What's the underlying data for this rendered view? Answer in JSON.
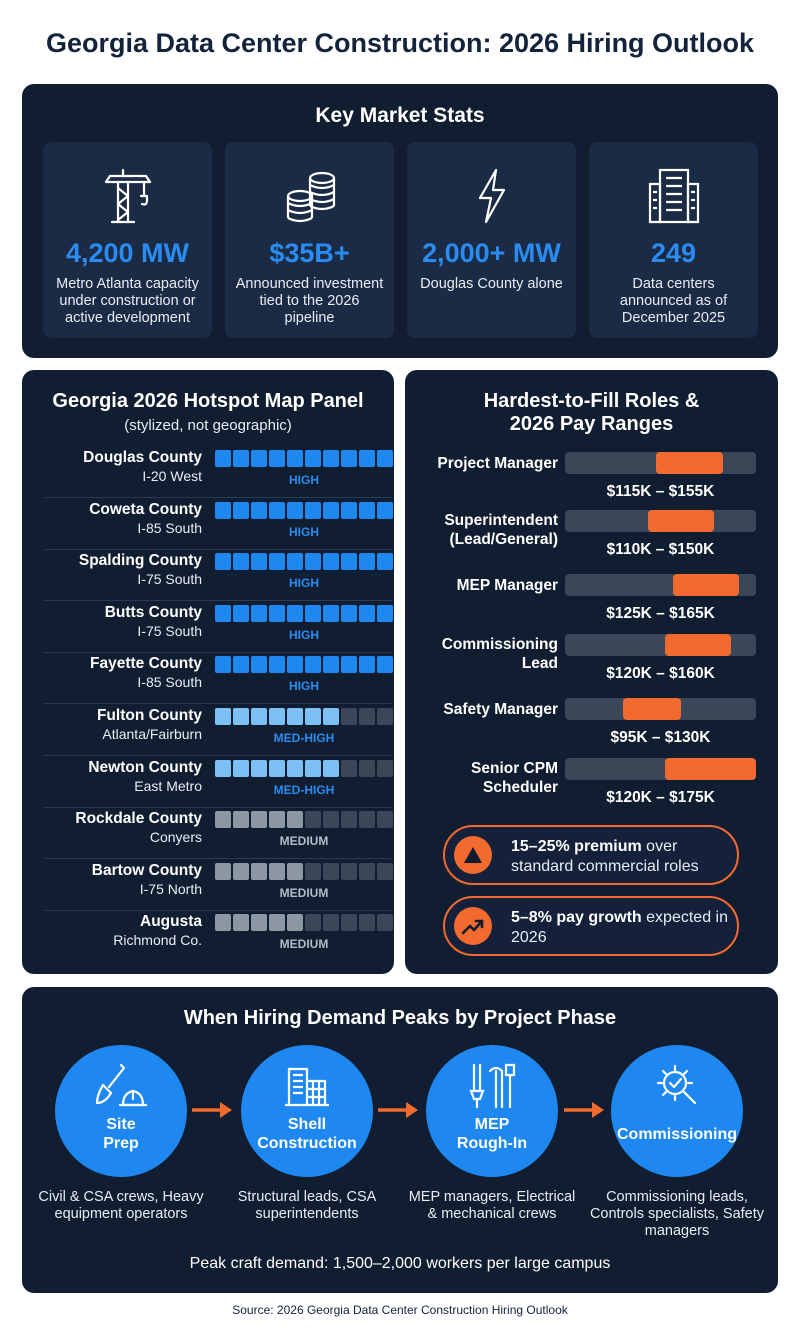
{
  "title": "Georgia Data Center Construction: 2026 Hiring Outlook",
  "stats": {
    "heading": "Key Market Stats",
    "cards": [
      {
        "icon": "crane-icon",
        "value": "4,200 MW",
        "desc": "Metro Atlanta capacity under construction or active development"
      },
      {
        "icon": "coins-icon",
        "value": "$35B+",
        "desc": "Announced investment tied to the 2026 pipeline"
      },
      {
        "icon": "lightning-icon",
        "value": "2,000+ MW",
        "desc": "Douglas County alone"
      },
      {
        "icon": "building-icon",
        "value": "249",
        "desc": "Data centers announced as of December 2025"
      }
    ]
  },
  "map": {
    "heading": "Georgia 2026 Hotspot Map Panel",
    "subheading": "(stylized, not geographic)",
    "counties": [
      {
        "name": "Douglas County",
        "sub": "I-20 West",
        "level": "HIGH",
        "filled": 10,
        "tone": "high"
      },
      {
        "name": "Coweta County",
        "sub": "I-85 South",
        "level": "HIGH",
        "filled": 10,
        "tone": "high"
      },
      {
        "name": "Spalding County",
        "sub": "I-75 South",
        "level": "HIGH",
        "filled": 10,
        "tone": "high"
      },
      {
        "name": "Butts County",
        "sub": "I-75 South",
        "level": "HIGH",
        "filled": 10,
        "tone": "high"
      },
      {
        "name": "Fayette County",
        "sub": "I-85 South",
        "level": "HIGH",
        "filled": 10,
        "tone": "high"
      },
      {
        "name": "Fulton County",
        "sub": "Atlanta/Fairburn",
        "level": "MED-HIGH",
        "filled": 7,
        "tone": "medhigh"
      },
      {
        "name": "Newton County",
        "sub": "East Metro",
        "level": "MED-HIGH",
        "filled": 7,
        "tone": "medhigh"
      },
      {
        "name": "Rockdale County",
        "sub": "Conyers",
        "level": "MEDIUM",
        "filled": 5,
        "tone": "medium"
      },
      {
        "name": "Bartow County",
        "sub": "I-75 North",
        "level": "MEDIUM",
        "filled": 5,
        "tone": "medium"
      },
      {
        "name": "Augusta",
        "sub": "Richmond Co.",
        "level": "MEDIUM",
        "filled": 5,
        "tone": "medium"
      }
    ],
    "colors": {
      "high": "#1e88f0",
      "medhigh": "#7cc0f5",
      "medium": "#8d96a3",
      "empty": "#3b4658",
      "level_high": "#2a8cf0",
      "level_medhigh": "#2a8cf0",
      "level_medium": "#b3bcc8"
    }
  },
  "roles": {
    "heading_line1": "Hardest-to-Fill Roles &",
    "heading_line2": "2026 Pay Ranges",
    "scale_min": 60,
    "scale_max": 175,
    "items": [
      {
        "name": "Project Manager",
        "min": 115,
        "max": 155,
        "range": "$115K – $155K"
      },
      {
        "name": "Superintendent (Lead/General)",
        "min": 110,
        "max": 150,
        "range": "$110K – $150K"
      },
      {
        "name": "MEP Manager",
        "min": 125,
        "max": 165,
        "range": "$125K – $165K"
      },
      {
        "name": "Commissioning Lead",
        "min": 120,
        "max": 160,
        "range": "$120K – $160K"
      },
      {
        "name": "Safety Manager",
        "min": 95,
        "max": 130,
        "range": "$95K – $130K"
      },
      {
        "name": "Senior CPM Scheduler",
        "min": 120,
        "max": 175,
        "range": "$120K – $175K"
      }
    ],
    "callouts": [
      {
        "icon": "triangle-up-icon",
        "bold": "15–25% premium",
        "text": " over standard commercial roles"
      },
      {
        "icon": "trend-up-icon",
        "bold": "5–8% pay growth",
        "text": " expected in 2026"
      }
    ]
  },
  "phases": {
    "heading": "When Hiring Demand Peaks by Project Phase",
    "items": [
      {
        "icon": "shovel-hardhat-icon",
        "label1": "Site",
        "label2": "Prep",
        "desc": "Civil & CSA crews, Heavy equipment operators"
      },
      {
        "icon": "building-frame-icon",
        "label1": "Shell",
        "label2": "Construction",
        "desc": "Structural leads, CSA superintendents"
      },
      {
        "icon": "pipes-wires-icon",
        "label1": "MEP",
        "label2": "Rough-In",
        "desc": "MEP managers, Electrical & mechanical crews"
      },
      {
        "icon": "gear-check-icon",
        "label1": "Commissioning",
        "label2": "",
        "desc": "Commissioning leads, Controls specialists, Safety managers"
      }
    ],
    "footer": "Peak craft demand: 1,500–2,000 workers per large campus"
  },
  "source": "Source: 2026 Georgia Data Center Construction Hiring Outlook"
}
